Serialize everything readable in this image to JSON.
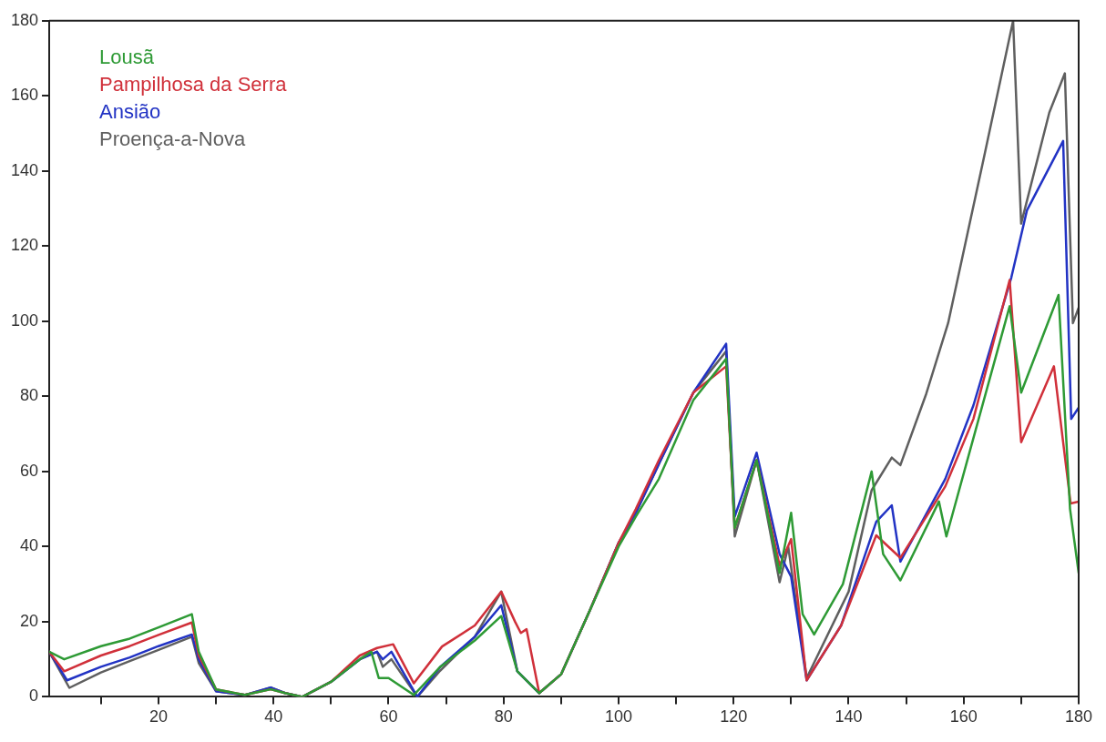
{
  "chart_data": {
    "type": "line",
    "xlim": [
      1,
      180
    ],
    "ylim": [
      0,
      180
    ],
    "xticks": [
      {
        "value": 10,
        "label": null
      },
      20,
      {
        "value": 30,
        "label": null
      },
      40,
      {
        "value": 50,
        "label": null
      },
      60,
      {
        "value": 70,
        "label": null
      },
      80,
      {
        "value": 90,
        "label": null
      },
      100,
      {
        "value": 110,
        "label": null
      },
      120,
      {
        "value": 130,
        "label": null
      },
      140,
      {
        "value": 150,
        "label": null
      },
      160,
      {
        "value": 170,
        "label": null
      },
      180
    ],
    "yticks": [
      0,
      20,
      40,
      60,
      80,
      100,
      120,
      140,
      160,
      180
    ],
    "legend": "top left",
    "marker": "none",
    "line_style": "solid",
    "series": [
      {
        "name": "Lousã",
        "color": "#2e9a35",
        "x": [
          1,
          3.6,
          10,
          15,
          20,
          25.8,
          27,
          30,
          35,
          39.5,
          42,
          45,
          50,
          55,
          57,
          58.3,
          60,
          64.4,
          69,
          75,
          79.6,
          82.4,
          86.2,
          90,
          95,
          100,
          103,
          107,
          113,
          118.7,
          120.2,
          124,
          128,
          130,
          132,
          134,
          139,
          144,
          146,
          149,
          155.7,
          157,
          168,
          170,
          176.5,
          178.5,
          180
        ],
        "values": [
          12,
          10,
          13.5,
          15.5,
          18.5,
          22,
          12,
          2,
          0.5,
          2,
          1,
          0,
          4,
          10,
          12,
          5,
          5,
          0.5,
          8,
          15,
          21.5,
          6.8,
          1,
          6,
          23,
          40,
          48,
          58,
          79,
          90,
          45,
          63,
          33,
          49,
          22,
          16.6,
          30,
          60,
          38,
          31,
          52,
          42.7,
          104,
          81,
          107,
          50,
          33
        ]
      },
      {
        "name": "Pampilhosa da Serra",
        "color": "#d0303a",
        "x": [
          1,
          3.6,
          10,
          15,
          20,
          25.8,
          27,
          30,
          35,
          39.5,
          42,
          45,
          50,
          55,
          58,
          60.8,
          64.4,
          69.3,
          75,
          79.6,
          82,
          83,
          84,
          86.2,
          90,
          95,
          100,
          103,
          107,
          113,
          118.7,
          120.2,
          124,
          128,
          130,
          132.7,
          138.7,
          144.8,
          149,
          156.8,
          161.7,
          168,
          170,
          175.7,
          177.3,
          178.6,
          180
        ],
        "values": [
          12,
          6.8,
          11,
          13.5,
          16.5,
          19.8,
          11,
          2,
          0.5,
          2,
          1,
          0,
          4,
          11,
          13,
          14,
          3.6,
          13.4,
          19,
          28,
          20,
          17,
          18,
          1,
          6,
          23,
          41,
          50,
          63,
          81,
          88,
          45,
          63,
          35,
          42,
          4.4,
          19,
          43,
          37,
          56,
          74,
          111,
          67.8,
          88,
          67.8,
          51.5,
          52
        ]
      },
      {
        "name": "Ansião",
        "color": "#2233c4",
        "x": [
          1,
          4.1,
          10,
          15,
          20,
          25.8,
          27,
          30,
          35,
          39.5,
          42,
          45,
          50,
          55,
          58,
          59,
          60.5,
          65,
          69,
          75,
          79.6,
          82.4,
          86.2,
          90,
          95,
          100,
          103,
          107,
          113,
          118.7,
          120.2,
          124,
          128,
          130,
          132.7,
          138.7,
          144.8,
          147.5,
          149,
          156.8,
          161.7,
          168.3,
          171,
          177.3,
          178.7,
          180
        ],
        "values": [
          12,
          4.4,
          8,
          10.5,
          13.5,
          16.6,
          10,
          1.5,
          0.5,
          2.5,
          1,
          0,
          4,
          10,
          12,
          10,
          12,
          0,
          8,
          16,
          24.4,
          6.8,
          1,
          6,
          23,
          41,
          49,
          62,
          81,
          94,
          48,
          65,
          38,
          32,
          4.4,
          19,
          46.6,
          51,
          36,
          58,
          77.6,
          111.7,
          129.5,
          148,
          74,
          77
        ]
      },
      {
        "name": "Proença-a-Nova",
        "color": "#5f5f5f",
        "x": [
          1,
          4.5,
          10,
          15,
          20,
          25.8,
          27,
          30,
          35,
          39.5,
          42,
          45,
          50,
          55,
          58,
          59,
          60.5,
          65,
          69,
          75,
          79.6,
          82.4,
          86.2,
          90,
          95,
          100,
          103,
          107,
          113,
          118.7,
          120.2,
          124,
          128,
          129.5,
          132.7,
          140,
          144,
          147.5,
          149,
          153.5,
          157.3,
          163.4,
          168.6,
          170,
          174.9,
          177.6,
          179,
          180
        ],
        "values": [
          12,
          2.4,
          6.5,
          9.5,
          12.5,
          16,
          9,
          1.5,
          0.5,
          2.5,
          1,
          0,
          4,
          10,
          12,
          8,
          10,
          0,
          7,
          16,
          28,
          6.8,
          1,
          6,
          23,
          41,
          49,
          62,
          81,
          92,
          42.7,
          63,
          30.5,
          40,
          5,
          28,
          55,
          63.7,
          61.7,
          80.7,
          99.5,
          142.7,
          180,
          126,
          155.6,
          166,
          99.5,
          103.6
        ]
      }
    ]
  }
}
